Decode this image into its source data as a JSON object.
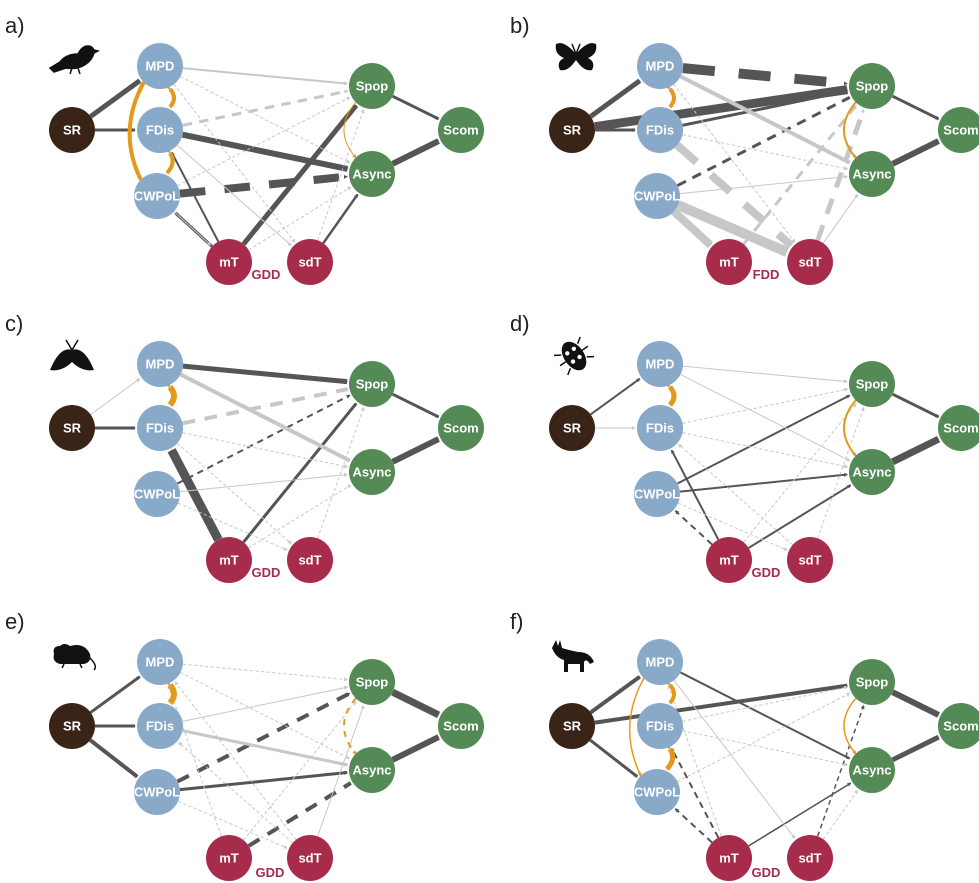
{
  "figure": {
    "colors": {
      "richness": "#3a2418",
      "functional": "#89a9c9",
      "stability": "#538a55",
      "climate": "#a72c4b",
      "edge_dark": "#555555",
      "edge_light": "#c7c7c7",
      "covariance": "#e39a1c"
    },
    "node_labels": {
      "SR": "SR",
      "MPD": "MPD",
      "FDis": "FDis",
      "CWPoL": "CWPoL",
      "Spop": "Spop",
      "Async": "Async",
      "Scom": "Scom",
      "mT": "mT",
      "sdT": "sdT"
    },
    "panels": [
      {
        "label": "a)",
        "taxon_icon": "bird-icon",
        "climate_text": "GDD"
      },
      {
        "label": "b)",
        "taxon_icon": "butterfly-icon",
        "climate_text": "FDD"
      },
      {
        "label": "c)",
        "taxon_icon": "moth-icon",
        "climate_text": "GDD"
      },
      {
        "label": "d)",
        "taxon_icon": "beetle-icon",
        "climate_text": "GDD"
      },
      {
        "label": "e)",
        "taxon_icon": "rodent-icon",
        "climate_text": "GDD"
      },
      {
        "label": "f)",
        "taxon_icon": "fox-icon",
        "climate_text": "GDD"
      }
    ],
    "edges": [
      [
        [
          "SR",
          "MPD",
          "d",
          5,
          0
        ],
        [
          "SR",
          "FDis",
          "d",
          3,
          0
        ],
        [
          "FDis",
          "Async",
          "d",
          6,
          0
        ],
        [
          "CWPoL",
          "Async",
          "d",
          8,
          1
        ],
        [
          "mT",
          "Spop",
          "d",
          5,
          0
        ],
        [
          "mT",
          "CWPoL",
          "d",
          3,
          0
        ],
        [
          "mT",
          "FDis",
          "d",
          2,
          0
        ],
        [
          "sdT",
          "Async",
          "d",
          2.5,
          0
        ],
        [
          "Spop",
          "Scom",
          "d",
          3,
          0
        ],
        [
          "Async",
          "Scom",
          "d",
          6,
          0
        ],
        [
          "FDis",
          "Spop",
          "l",
          3,
          1
        ],
        [
          "MPD",
          "Spop",
          "l",
          2,
          0
        ],
        [
          "MPD",
          "Async",
          "l",
          1,
          1
        ],
        [
          "CWPoL",
          "Spop",
          "l",
          1,
          1
        ],
        [
          "FDis",
          "sdT",
          "l",
          1,
          0
        ],
        [
          "MPD",
          "sdT",
          "l",
          1,
          1
        ],
        [
          "CWPoL",
          "mT",
          "l",
          1,
          0
        ],
        [
          "mT",
          "Async",
          "l",
          1,
          1
        ],
        [
          "sdT",
          "Spop",
          "l",
          1,
          1
        ]
      ],
      [
        [
          "SR",
          "MPD",
          "d",
          5,
          0
        ],
        [
          "SR",
          "FDis",
          "d",
          3,
          0
        ],
        [
          "SR",
          "Spop",
          "d",
          9,
          0
        ],
        [
          "FDis",
          "Spop",
          "d",
          3,
          0
        ],
        [
          "MPD",
          "Spop",
          "d",
          10,
          1
        ],
        [
          "CWPoL",
          "Spop",
          "d",
          3,
          1
        ],
        [
          "Async",
          "Scom",
          "d",
          6,
          0
        ],
        [
          "Spop",
          "Scom",
          "d",
          3,
          0
        ],
        [
          "FDis",
          "sdT",
          "l",
          8,
          1
        ],
        [
          "CWPoL",
          "sdT",
          "l",
          10,
          0
        ],
        [
          "CWPoL",
          "mT",
          "l",
          8,
          0
        ],
        [
          "MPD",
          "Async",
          "l",
          4,
          0
        ],
        [
          "mT",
          "Spop",
          "l",
          3,
          1
        ],
        [
          "sdT",
          "Spop",
          "l",
          5,
          1
        ],
        [
          "FDis",
          "Async",
          "l",
          1,
          1
        ],
        [
          "CWPoL",
          "Async",
          "l",
          1,
          0
        ],
        [
          "MPD",
          "sdT",
          "l",
          1,
          1
        ],
        [
          "sdT",
          "Async",
          "l",
          1,
          0
        ]
      ],
      [
        [
          "SR",
          "FDis",
          "d",
          3,
          0
        ],
        [
          "MPD",
          "Spop",
          "d",
          5,
          0
        ],
        [
          "mT",
          "FDis",
          "d",
          9,
          0
        ],
        [
          "mT",
          "Spop",
          "d",
          3,
          0
        ],
        [
          "CWPoL",
          "Spop",
          "d",
          2,
          1
        ],
        [
          "Spop",
          "Scom",
          "d",
          3,
          0
        ],
        [
          "Async",
          "Scom",
          "d",
          6,
          0
        ],
        [
          "SR",
          "MPD",
          "l",
          1,
          0
        ],
        [
          "FDis",
          "Spop",
          "l",
          4,
          1
        ],
        [
          "MPD",
          "Async",
          "l",
          4,
          0
        ],
        [
          "CWPoL",
          "Async",
          "l",
          1,
          0
        ],
        [
          "FDis",
          "Async",
          "l",
          1,
          1
        ],
        [
          "mT",
          "Async",
          "l",
          1,
          1
        ],
        [
          "sdT",
          "Spop",
          "l",
          1,
          1
        ],
        [
          "CWPoL",
          "sdT",
          "l",
          1,
          1
        ],
        [
          "FDis",
          "sdT",
          "l",
          1,
          1
        ]
      ],
      [
        [
          "SR",
          "MPD",
          "d",
          2,
          0
        ],
        [
          "CWPoL",
          "Spop",
          "d",
          2,
          0
        ],
        [
          "mT",
          "FDis",
          "d",
          2,
          0
        ],
        [
          "mT",
          "CWPoL",
          "d",
          2,
          1
        ],
        [
          "mT",
          "Async",
          "d",
          2,
          0
        ],
        [
          "CWPoL",
          "Async",
          "d",
          2,
          0
        ],
        [
          "Spop",
          "Scom",
          "d",
          3,
          0
        ],
        [
          "Async",
          "Scom",
          "d",
          7,
          0
        ],
        [
          "SR",
          "FDis",
          "l",
          1,
          0
        ],
        [
          "MPD",
          "Spop",
          "l",
          1,
          0
        ],
        [
          "MPD",
          "Async",
          "l",
          1,
          0
        ],
        [
          "FDis",
          "Spop",
          "l",
          1,
          1
        ],
        [
          "FDis",
          "Async",
          "l",
          1,
          1
        ],
        [
          "sdT",
          "Spop",
          "l",
          1,
          1
        ],
        [
          "sdT",
          "FDis",
          "l",
          1,
          1
        ],
        [
          "mT",
          "Spop",
          "l",
          1,
          1
        ],
        [
          "CWPoL",
          "sdT",
          "l",
          1,
          1
        ]
      ],
      [
        [
          "SR",
          "MPD",
          "d",
          3,
          0
        ],
        [
          "SR",
          "FDis",
          "d",
          3,
          0
        ],
        [
          "SR",
          "CWPoL",
          "d",
          4,
          0
        ],
        [
          "CWPoL",
          "Async",
          "d",
          3,
          0
        ],
        [
          "CWPoL",
          "Spop",
          "d",
          4,
          1
        ],
        [
          "mT",
          "Async",
          "d",
          4,
          1
        ],
        [
          "Spop",
          "Scom",
          "d",
          7,
          0
        ],
        [
          "Async",
          "Scom",
          "d",
          6,
          0
        ],
        [
          "FDis",
          "Async",
          "l",
          3,
          0
        ],
        [
          "MPD",
          "Spop",
          "l",
          1,
          1
        ],
        [
          "MPD",
          "Async",
          "l",
          1,
          1
        ],
        [
          "FDis",
          "Spop",
          "l",
          1,
          0
        ],
        [
          "mT",
          "Spop",
          "l",
          1,
          1
        ],
        [
          "sdT",
          "Spop",
          "l",
          1,
          0
        ],
        [
          "mT",
          "MPD",
          "l",
          1,
          1
        ],
        [
          "sdT",
          "MPD",
          "l",
          1,
          1
        ],
        [
          "sdT",
          "FDis",
          "l",
          1,
          1
        ],
        [
          "CWPoL",
          "sdT",
          "l",
          1,
          1
        ]
      ],
      [
        [
          "SR",
          "MPD",
          "d",
          4,
          0
        ],
        [
          "SR",
          "Spop",
          "d",
          4,
          0
        ],
        [
          "SR",
          "CWPoL",
          "d",
          3,
          0
        ],
        [
          "MPD",
          "Async",
          "d",
          2,
          0
        ],
        [
          "Spop",
          "Scom",
          "d",
          6,
          0
        ],
        [
          "Async",
          "Scom",
          "d",
          5,
          0
        ],
        [
          "mT",
          "FDis",
          "d",
          2,
          1
        ],
        [
          "mT",
          "CWPoL",
          "d",
          2,
          1
        ],
        [
          "mT",
          "Async",
          "d",
          1.5,
          0
        ],
        [
          "sdT",
          "Spop",
          "d",
          1.5,
          1
        ],
        [
          "FDis",
          "Spop",
          "l",
          1,
          1
        ],
        [
          "FDis",
          "Async",
          "l",
          1,
          1
        ],
        [
          "MPD",
          "sdT",
          "l",
          1,
          0
        ],
        [
          "mT",
          "MPD",
          "l",
          1,
          1
        ],
        [
          "CWPoL",
          "Spop",
          "l",
          1,
          1
        ],
        [
          "sdT",
          "Async",
          "l",
          1,
          1
        ]
      ]
    ],
    "covariances": [
      [
        [
          "MPD",
          "FDis",
          4,
          0
        ],
        [
          "FDis",
          "CWPoL",
          4,
          0
        ],
        [
          "MPD",
          "CWPoL",
          4,
          0
        ],
        [
          "Spop",
          "Async",
          1,
          0
        ]
      ],
      [
        [
          "MPD",
          "FDis",
          4,
          0
        ],
        [
          "Spop",
          "Async",
          2,
          0
        ]
      ],
      [
        [
          "MPD",
          "FDis",
          6,
          0
        ]
      ],
      [
        [
          "MPD",
          "FDis",
          5,
          0
        ],
        [
          "Spop",
          "Async",
          2,
          0
        ]
      ],
      [
        [
          "MPD",
          "FDis",
          6,
          0
        ],
        [
          "Spop",
          "Async",
          2,
          1
        ]
      ],
      [
        [
          "MPD",
          "FDis",
          4,
          0
        ],
        [
          "FDis",
          "CWPoL",
          5,
          0
        ],
        [
          "MPD",
          "CWPoL",
          1.5,
          0
        ],
        [
          "Spop",
          "Async",
          1.5,
          0
        ]
      ]
    ]
  }
}
